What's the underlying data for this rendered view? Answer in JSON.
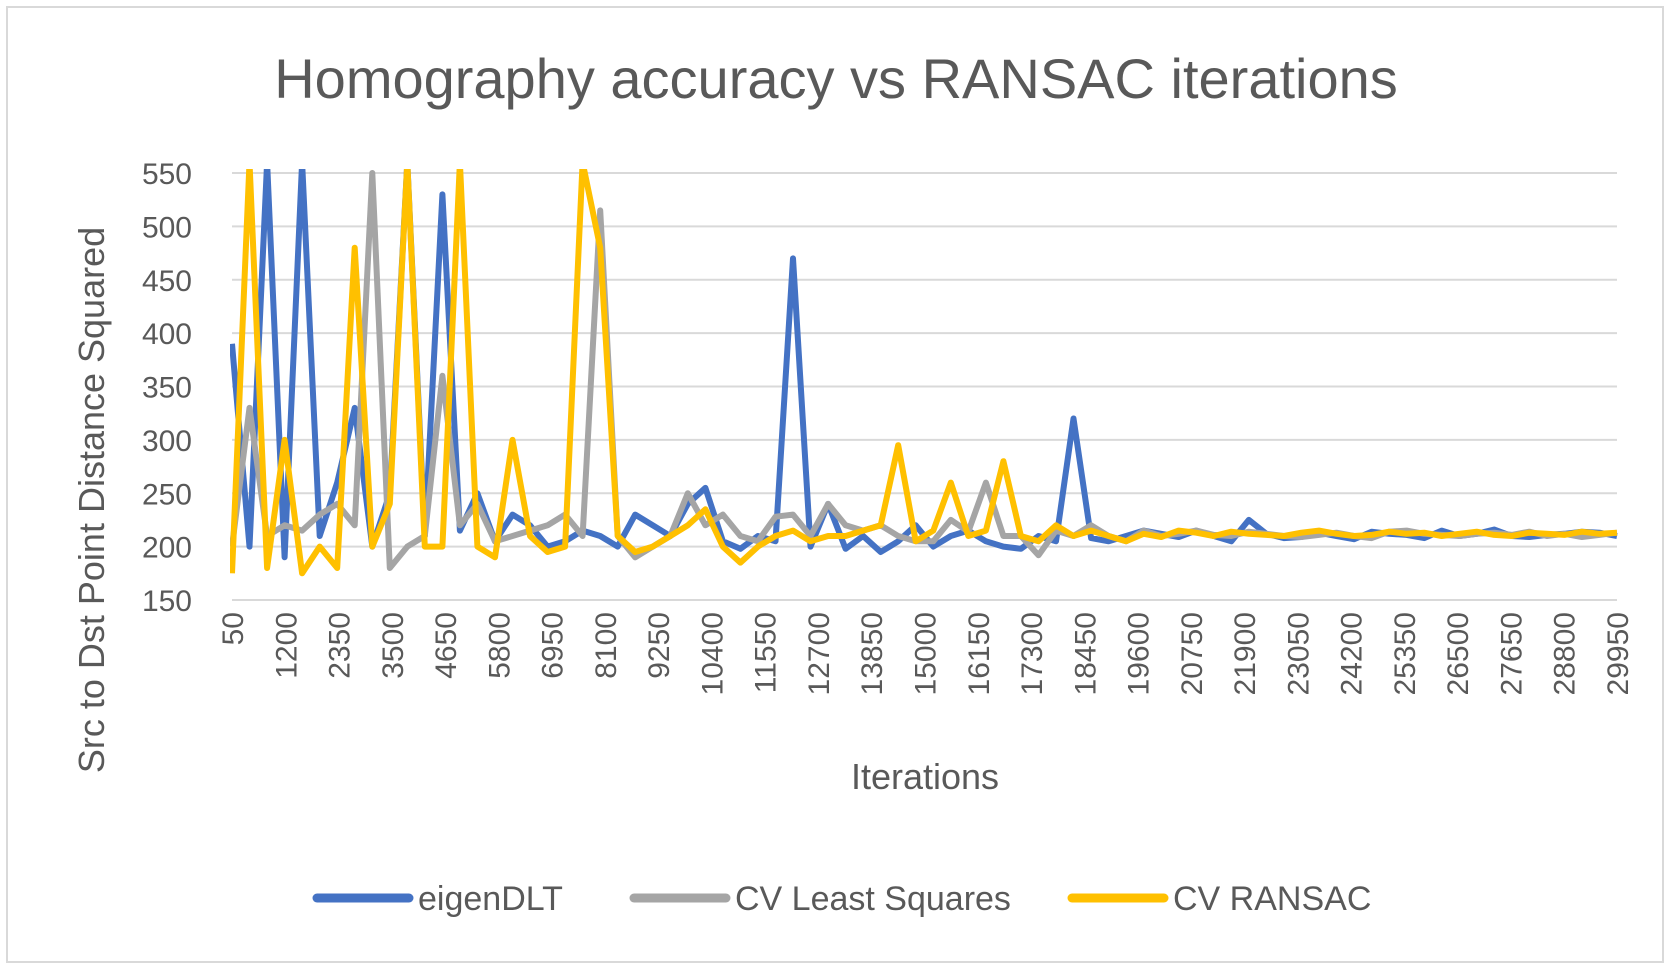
{
  "chart_data": {
    "type": "line",
    "title": "Homography accuracy vs RANSAC iterations",
    "xlabel": "Iterations",
    "ylabel": "Src to Dst Point Distance Squared",
    "ylim": [
      150,
      550
    ],
    "yticks": [
      150,
      200,
      250,
      300,
      350,
      400,
      450,
      500,
      550
    ],
    "xlim": [
      50,
      29950
    ],
    "xtick_labels": [
      "50",
      "1200",
      "2350",
      "3500",
      "4650",
      "5800",
      "6950",
      "8100",
      "9250",
      "10400",
      "11550",
      "12700",
      "13850",
      "15000",
      "16150",
      "17300",
      "18450",
      "19600",
      "20750",
      "21900",
      "23050",
      "24200",
      "25350",
      "26500",
      "27650",
      "28800",
      "29950"
    ],
    "x_step": 50,
    "grid": "horizontal",
    "legend_position": "bottom",
    "series": [
      {
        "name": "eigenDLT",
        "color": "#4472C4",
        "values": [
          390,
          200,
          560,
          190,
          560,
          210,
          260,
          330,
          200,
          250,
          560,
          210,
          530,
          215,
          250,
          205,
          230,
          220,
          200,
          205,
          215,
          210,
          200,
          230,
          220,
          210,
          240,
          255,
          205,
          198,
          210,
          205,
          470,
          200,
          240,
          198,
          210,
          195,
          205,
          220,
          200,
          210,
          215,
          205,
          200,
          198,
          210,
          205,
          320,
          208,
          205,
          210,
          215,
          212,
          209,
          215,
          210,
          205,
          225,
          212,
          208,
          209,
          213,
          210,
          207,
          214,
          212,
          211,
          208,
          215,
          210,
          212,
          216,
          210,
          209,
          211,
          212,
          214,
          213,
          210
        ]
      },
      {
        "name": "CV Least Squares",
        "color": "#A5A5A5",
        "values": [
          200,
          330,
          210,
          220,
          215,
          230,
          240,
          220,
          550,
          180,
          200,
          210,
          360,
          220,
          240,
          205,
          210,
          215,
          220,
          230,
          210,
          515,
          210,
          190,
          200,
          210,
          250,
          220,
          230,
          210,
          205,
          228,
          230,
          210,
          240,
          220,
          215,
          220,
          210,
          205,
          205,
          225,
          214,
          260,
          210,
          210,
          192,
          215,
          210,
          220,
          210,
          205,
          215,
          210,
          212,
          215,
          211,
          210,
          214,
          212,
          210,
          209,
          211,
          213,
          210,
          208,
          214,
          215,
          212,
          211,
          210,
          212,
          213,
          211,
          214,
          210,
          212,
          209,
          211,
          213
        ]
      },
      {
        "name": "CV RANSAC",
        "color": "#FFC000",
        "values": [
          175,
          560,
          180,
          300,
          175,
          200,
          180,
          480,
          200,
          240,
          560,
          200,
          200,
          560,
          200,
          190,
          300,
          210,
          195,
          200,
          560,
          480,
          210,
          195,
          200,
          210,
          220,
          235,
          200,
          185,
          200,
          210,
          215,
          205,
          210,
          210,
          215,
          220,
          295,
          205,
          215,
          260,
          210,
          215,
          280,
          210,
          205,
          220,
          210,
          215,
          210,
          205,
          212,
          209,
          215,
          213,
          210,
          214,
          212,
          211,
          210,
          213,
          215,
          212,
          210,
          211,
          214,
          212,
          213,
          210,
          212,
          214,
          211,
          210,
          213,
          212,
          211,
          214,
          212,
          213
        ]
      }
    ]
  }
}
